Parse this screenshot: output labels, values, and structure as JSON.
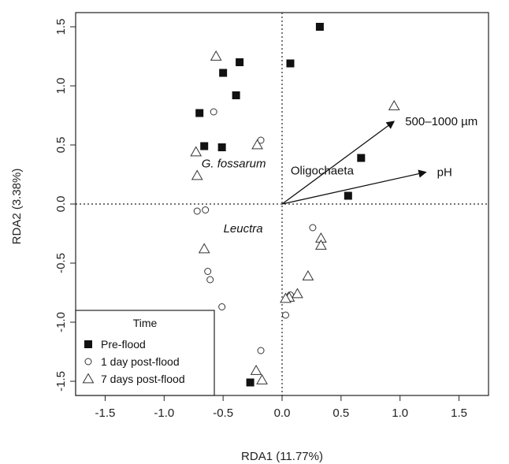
{
  "chart_data": {
    "type": "scatter",
    "title": "",
    "xlabel": "RDA1 (11.77%)",
    "ylabel": "RDA2 (3.38%)",
    "xlim": [
      -1.7,
      1.9
    ],
    "ylim": [
      -1.63,
      1.63
    ],
    "x_ticks": [
      "-1.5",
      "-1.0",
      "-0.5",
      "0.0",
      "0.5",
      "1.0",
      "1.5"
    ],
    "y_ticks": [
      "-1.5",
      "-1.0",
      "-0.5",
      "0.0",
      "0.5",
      "1.0",
      "1.5"
    ],
    "reference_lines": {
      "x": 0,
      "y": 0,
      "style": "dotted"
    },
    "legend": {
      "title": "Time",
      "placement": "bottom-left",
      "entries": [
        "Pre-flood",
        "1 day post-flood",
        "7 days post-flood"
      ]
    },
    "series": [
      {
        "name": "Pre-flood",
        "marker": "filled-square",
        "points": [
          [
            0.32,
            1.5
          ],
          [
            -0.36,
            1.2
          ],
          [
            0.07,
            1.19
          ],
          [
            -0.5,
            1.11
          ],
          [
            -0.39,
            0.92
          ],
          [
            -0.7,
            0.77
          ],
          [
            -0.66,
            0.49
          ],
          [
            -0.51,
            0.48
          ],
          [
            0.67,
            0.39
          ],
          [
            0.56,
            0.07
          ],
          [
            -0.27,
            -1.51
          ]
        ]
      },
      {
        "name": "1 day post-flood",
        "marker": "open-circle",
        "points": [
          [
            -0.58,
            0.78
          ],
          [
            -0.18,
            0.54
          ],
          [
            -0.72,
            -0.06
          ],
          [
            -0.65,
            -0.05
          ],
          [
            0.26,
            -0.2
          ],
          [
            -0.63,
            -0.57
          ],
          [
            -0.61,
            -0.64
          ],
          [
            -0.51,
            -0.87
          ],
          [
            0.07,
            -0.77
          ],
          [
            0.03,
            -0.94
          ],
          [
            -0.18,
            -1.24
          ]
        ]
      },
      {
        "name": "7 days post-flood",
        "marker": "open-triangle",
        "points": [
          [
            -0.56,
            1.25
          ],
          [
            0.95,
            0.83
          ],
          [
            -0.21,
            0.5
          ],
          [
            -0.73,
            0.44
          ],
          [
            -0.72,
            0.24
          ],
          [
            0.33,
            -0.29
          ],
          [
            0.33,
            -0.35
          ],
          [
            -0.66,
            -0.38
          ],
          [
            0.22,
            -0.61
          ],
          [
            0.13,
            -0.76
          ],
          [
            0.06,
            -0.79
          ],
          [
            0.03,
            -0.8
          ],
          [
            -0.22,
            -1.41
          ],
          [
            -0.17,
            -1.49
          ]
        ]
      }
    ],
    "vectors": [
      {
        "label": "500–1000 µm",
        "x": 0.95,
        "y": 0.7
      },
      {
        "label": "pH",
        "x": 1.22,
        "y": 0.27
      }
    ],
    "annotations": [
      {
        "text": "G. fossarum",
        "x": -0.41,
        "y": 0.31,
        "italic": true
      },
      {
        "text": "Oligochaeta",
        "x": 0.34,
        "y": 0.25,
        "italic": false
      },
      {
        "text": "Leuctra",
        "x": -0.33,
        "y": -0.24,
        "italic": true
      }
    ],
    "grid": false
  }
}
